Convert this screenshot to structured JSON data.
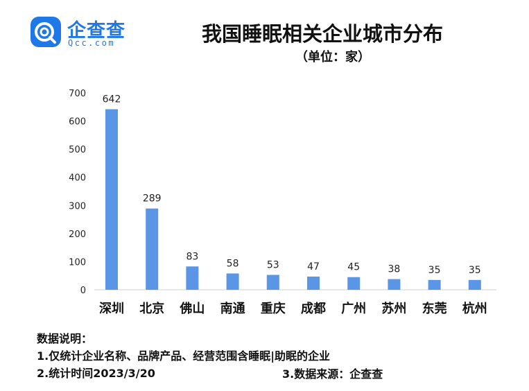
{
  "logo": {
    "brand": "企查查",
    "domain": "Qcc.com"
  },
  "header": {
    "title": "我国睡眠相关企业城市分布",
    "subtitle": "（单位：家）"
  },
  "chart_data": {
    "type": "bar",
    "title": "我国睡眠相关企业城市分布",
    "subtitle": "（单位：家）",
    "categories": [
      "深圳",
      "北京",
      "佛山",
      "南通",
      "重庆",
      "成都",
      "广州",
      "苏州",
      "东莞",
      "杭州"
    ],
    "values": [
      642,
      289,
      83,
      58,
      53,
      47,
      45,
      38,
      35,
      35
    ],
    "yticks": [
      0,
      100,
      200,
      300,
      400,
      500,
      600,
      700
    ],
    "ylim": [
      0,
      700
    ],
    "grid": false,
    "legend": "none",
    "bar_color": "#5b95e6"
  },
  "notes": {
    "heading": "数据说明：",
    "line1": "1.仅统计企业名称、品牌产品、经营范围含睡眠|助眠的企业",
    "line2": "2.统计时间2023/3/20",
    "line3": "3.数据来源：企查查"
  }
}
